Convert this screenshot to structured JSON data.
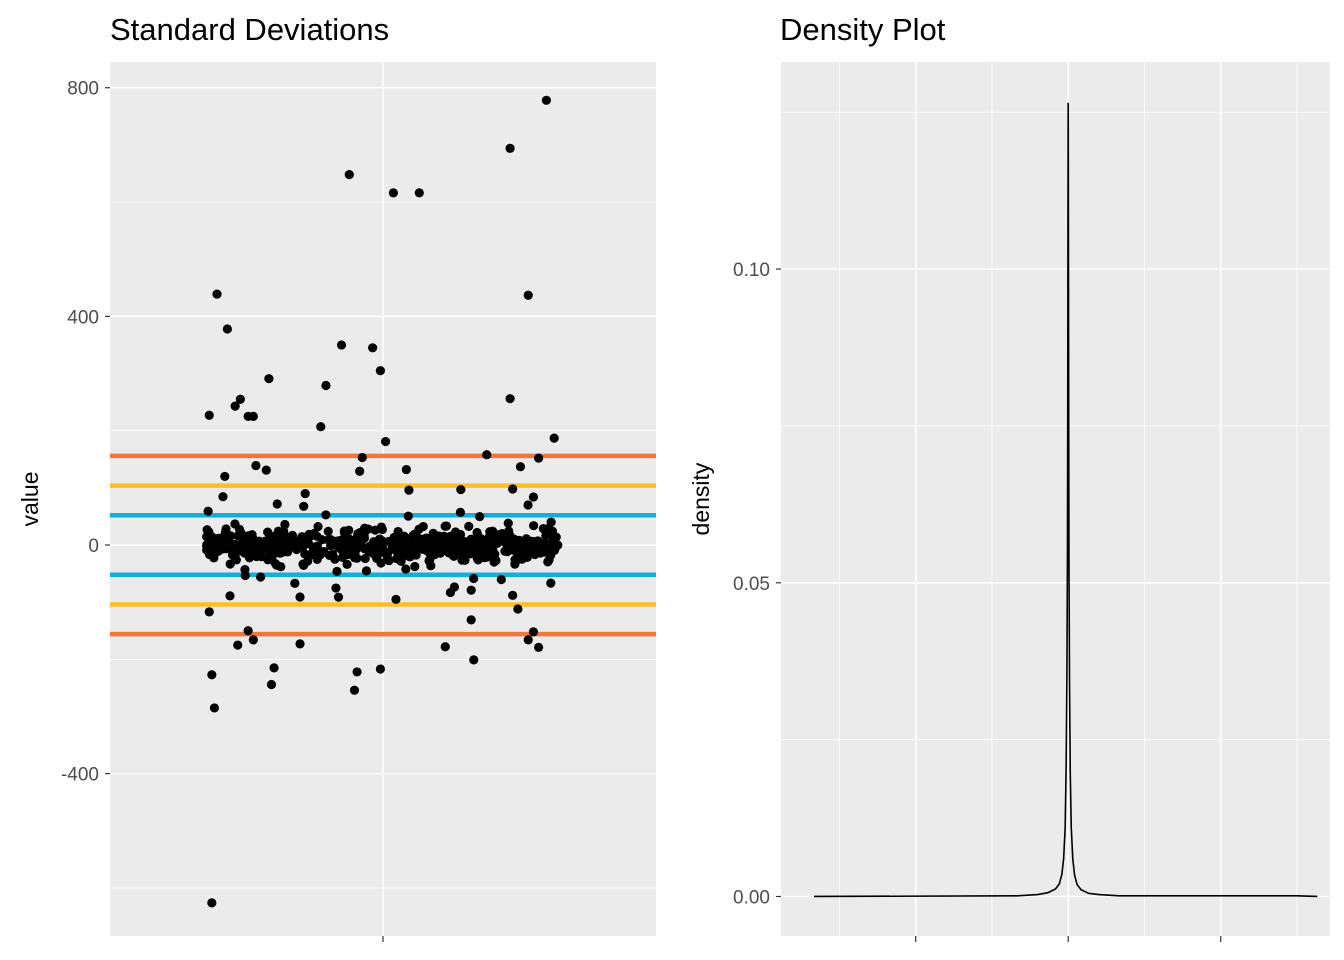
{
  "chart_data": [
    {
      "type": "scatter",
      "title": "Standard Deviations",
      "xlabel": "",
      "ylabel": "value",
      "ylim": [
        -684,
        845
      ],
      "y_ticks": [
        -400,
        0,
        400,
        800
      ],
      "y_tick_labels": [
        "-400",
        "0",
        "400",
        "800"
      ],
      "grid": true,
      "reference_lines": [
        {
          "y": 156,
          "color": "#f0763d"
        },
        {
          "y": 104,
          "color": "#fdbf22"
        },
        {
          "y": 52,
          "color": "#0fb0dc"
        },
        {
          "y": -52,
          "color": "#0fb0dc"
        },
        {
          "y": -104,
          "color": "#fdbf22"
        },
        {
          "y": -156,
          "color": "#f0763d"
        }
      ],
      "outliers": [
        {
          "x": -0.67,
          "y": 227
        },
        {
          "x": -0.64,
          "y": 439
        },
        {
          "x": -0.6,
          "y": 378
        },
        {
          "x": -0.57,
          "y": 243
        },
        {
          "x": -0.55,
          "y": 255
        },
        {
          "x": -0.52,
          "y": 225
        },
        {
          "x": -0.5,
          "y": 225
        },
        {
          "x": -0.44,
          "y": 291
        },
        {
          "x": -0.24,
          "y": 207
        },
        {
          "x": -0.22,
          "y": 279
        },
        {
          "x": -0.16,
          "y": 350
        },
        {
          "x": -0.13,
          "y": 648
        },
        {
          "x": -0.04,
          "y": 345
        },
        {
          "x": -0.01,
          "y": 305
        },
        {
          "x": 0.04,
          "y": 616
        },
        {
          "x": 0.14,
          "y": 616
        },
        {
          "x": 0.49,
          "y": 694
        },
        {
          "x": 0.49,
          "y": 256
        },
        {
          "x": 0.56,
          "y": 437
        },
        {
          "x": 0.63,
          "y": 778
        },
        {
          "x": 0.66,
          "y": 187
        },
        {
          "x": -0.66,
          "y": -227
        },
        {
          "x": -0.65,
          "y": -285
        },
        {
          "x": -0.43,
          "y": -244
        },
        {
          "x": -0.42,
          "y": -215
        },
        {
          "x": -0.11,
          "y": -254
        },
        {
          "x": -0.1,
          "y": -222
        },
        {
          "x": -0.01,
          "y": -217
        },
        {
          "x": 0.35,
          "y": -201
        },
        {
          "x": -0.56,
          "y": -175
        },
        {
          "x": -0.52,
          "y": -150
        },
        {
          "x": -0.5,
          "y": -166
        },
        {
          "x": -0.32,
          "y": -173
        },
        {
          "x": 0.24,
          "y": -178
        },
        {
          "x": 0.34,
          "y": -131
        },
        {
          "x": 0.56,
          "y": -166
        },
        {
          "x": 0.6,
          "y": -179
        },
        {
          "x": 0.58,
          "y": -152
        },
        {
          "x": 0.52,
          "y": -112
        },
        {
          "x": -0.67,
          "y": -117
        },
        {
          "x": -0.59,
          "y": -89
        },
        {
          "x": -0.32,
          "y": -91
        },
        {
          "x": -0.34,
          "y": -67
        },
        {
          "x": 0.05,
          "y": -95
        },
        {
          "x": 0.26,
          "y": -83
        },
        {
          "x": 0.34,
          "y": -79
        },
        {
          "x": 0.5,
          "y": -88
        },
        {
          "x": -0.61,
          "y": 120
        },
        {
          "x": -0.49,
          "y": 139
        },
        {
          "x": -0.45,
          "y": 131
        },
        {
          "x": -0.08,
          "y": 153
        },
        {
          "x": 0.01,
          "y": 181
        },
        {
          "x": 0.09,
          "y": 132
        },
        {
          "x": 0.4,
          "y": 158
        },
        {
          "x": 0.6,
          "y": 152
        },
        {
          "x": 0.53,
          "y": 137
        },
        {
          "x": -0.3,
          "y": 90
        },
        {
          "x": -0.09,
          "y": 129
        },
        {
          "x": 0.1,
          "y": 96
        },
        {
          "x": 0.3,
          "y": 97
        },
        {
          "x": 0.5,
          "y": 98
        },
        {
          "x": 0.58,
          "y": 84
        },
        {
          "x": -0.66,
          "y": -626
        }
      ],
      "cluster": {
        "count": 560,
        "x_range": [
          -0.68,
          0.68
        ],
        "spread": 30
      }
    },
    {
      "type": "line",
      "title": "Density Plot",
      "xlabel": "",
      "ylabel": "density",
      "ylim": [
        -0.0063,
        0.133
      ],
      "y_ticks": [
        0.0,
        0.05,
        0.1
      ],
      "y_tick_labels": [
        "0.00",
        "0.05",
        "0.10"
      ],
      "xlim": [
        -1.13,
        1.03
      ],
      "grid": true,
      "series": [
        {
          "x": [
            -1.0,
            -0.2,
            -0.12,
            -0.08,
            -0.05,
            -0.035,
            -0.025,
            -0.018,
            -0.012,
            -0.008,
            -0.005,
            -0.003,
            -0.002,
            -0.001,
            0.0,
            0.001,
            0.002,
            0.003,
            0.005,
            0.008,
            0.012,
            0.018,
            0.025,
            0.035,
            0.05,
            0.08,
            0.12,
            0.2,
            0.5,
            0.9,
            0.98
          ],
          "y": [
            0.0,
            0.0001,
            0.0003,
            0.0006,
            0.0012,
            0.002,
            0.0035,
            0.006,
            0.011,
            0.021,
            0.036,
            0.055,
            0.075,
            0.105,
            0.1265,
            0.103,
            0.074,
            0.054,
            0.035,
            0.02,
            0.011,
            0.006,
            0.0034,
            0.0019,
            0.0011,
            0.0005,
            0.0003,
            0.0001,
            0.0001,
            0.0001,
            0.0
          ]
        }
      ]
    }
  ]
}
